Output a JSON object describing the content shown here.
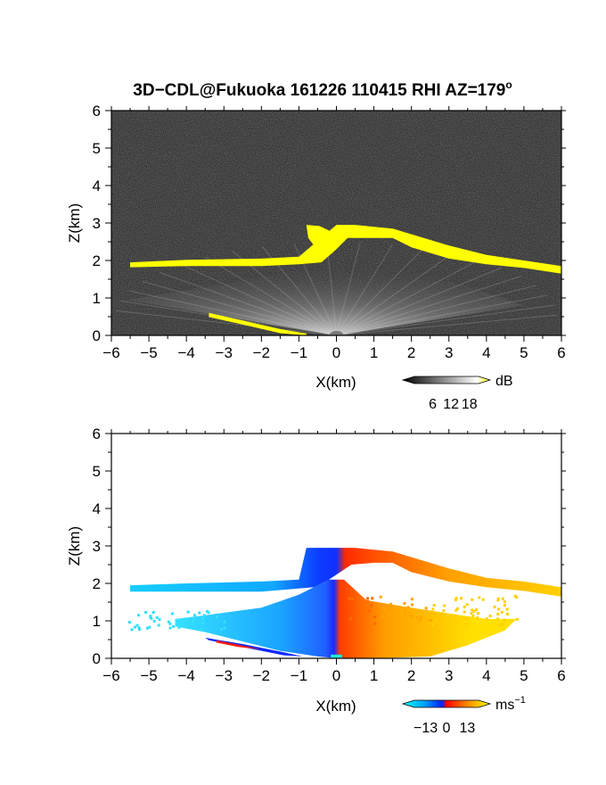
{
  "title": {
    "main": "3D−CDL@Fukuoka 161226 110415 RHI AZ=179",
    "degree": "o"
  },
  "colors": {
    "echo_yellow": "#ffff00",
    "background_dark": "#1c1c1c",
    "cyan": "#00ccff",
    "blue": "#0a3cff",
    "red": "#ff2a00",
    "orange": "#ff9a00",
    "yellow": "#ffd500"
  },
  "chart_data": [
    {
      "type": "heatmap",
      "name": "reflectivity-rhi",
      "xlabel": "X(km)",
      "ylabel": "Z(km)",
      "xlim": [
        -6,
        6
      ],
      "ylim": [
        0,
        6
      ],
      "xticks": [
        "−6",
        "−5",
        "−4",
        "−3",
        "−2",
        "−1",
        "0",
        "1",
        "2",
        "3",
        "4",
        "5",
        "6"
      ],
      "yticks": [
        "0",
        "1",
        "2",
        "3",
        "4",
        "5",
        "6"
      ],
      "colorbar": {
        "unit": "dB",
        "ticks": [
          "6",
          "12",
          "18"
        ],
        "range": [
          0,
          21
        ]
      },
      "echo_layer_top": [
        [
          -5.5,
          1.95
        ],
        [
          -4,
          2.02
        ],
        [
          -2,
          2.05
        ],
        [
          -1,
          2.1
        ],
        [
          -0.8,
          2.9
        ],
        [
          -0.4,
          2.9
        ],
        [
          -0.2,
          2.85
        ],
        [
          0,
          2.95
        ],
        [
          0.5,
          2.95
        ],
        [
          1,
          2.9
        ],
        [
          1.5,
          2.85
        ],
        [
          2,
          2.7
        ],
        [
          3,
          2.4
        ],
        [
          4,
          2.15
        ],
        [
          5,
          2.0
        ],
        [
          6,
          1.85
        ]
      ],
      "echo_layer_bottom": [
        [
          -5.5,
          1.82
        ],
        [
          -4,
          1.85
        ],
        [
          -2,
          1.85
        ],
        [
          -1,
          1.9
        ],
        [
          -0.4,
          1.95
        ],
        [
          0,
          2.3
        ],
        [
          0.3,
          2.6
        ],
        [
          1,
          2.6
        ],
        [
          1.5,
          2.6
        ],
        [
          2,
          2.35
        ],
        [
          3,
          2.05
        ],
        [
          4,
          1.9
        ],
        [
          5,
          1.8
        ],
        [
          6,
          1.65
        ]
      ],
      "low_layer": [
        [
          -3.4,
          0.55
        ],
        [
          -2.5,
          0.35
        ],
        [
          -1.5,
          0.12
        ],
        [
          -0.8,
          0.0
        ]
      ]
    },
    {
      "type": "heatmap",
      "name": "doppler-velocity-rhi",
      "xlabel": "X(km)",
      "ylabel": "Z(km)",
      "xlim": [
        -6,
        6
      ],
      "ylim": [
        0,
        6
      ],
      "xticks": [
        "−6",
        "−5",
        "−4",
        "−3",
        "−2",
        "−1",
        "0",
        "1",
        "2",
        "3",
        "4",
        "5",
        "6"
      ],
      "yticks": [
        "0",
        "1",
        "2",
        "3",
        "4",
        "5",
        "6"
      ],
      "colorbar": {
        "unit": "ms",
        "unit_exp": "−1",
        "ticks": [
          "−13",
          "0",
          "13"
        ],
        "range": [
          -20,
          20
        ]
      },
      "upper_layer_velocity": [
        [
          -5.5,
          -13
        ],
        [
          -4,
          -13
        ],
        [
          -2,
          -13
        ],
        [
          -1,
          -15
        ],
        [
          -0.2,
          -18
        ],
        [
          0.3,
          8
        ],
        [
          1,
          10
        ],
        [
          2,
          11
        ],
        [
          3,
          12
        ],
        [
          4,
          13
        ],
        [
          5,
          14
        ],
        [
          6,
          14
        ]
      ],
      "lower_region_velocity": [
        [
          -3.5,
          -13
        ],
        [
          -2,
          -14
        ],
        [
          -1,
          -17
        ],
        [
          -0.1,
          -19
        ],
        [
          0.1,
          8
        ],
        [
          1,
          12
        ],
        [
          2,
          13
        ],
        [
          3,
          14
        ],
        [
          4,
          15
        ]
      ]
    }
  ]
}
